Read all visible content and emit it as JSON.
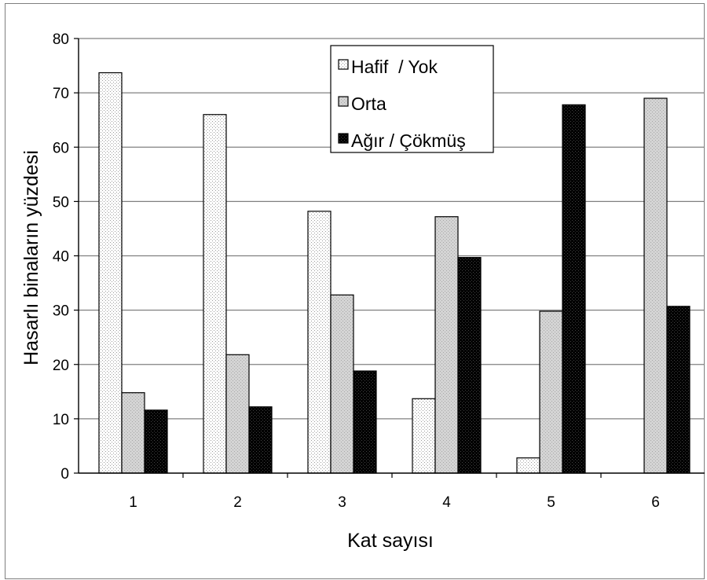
{
  "chart_data": {
    "type": "bar",
    "title": "",
    "xlabel": "Kat sayısı",
    "ylabel": "Hasarlı binaların yüzdesi",
    "categories": [
      "1",
      "2",
      "3",
      "4",
      "5",
      "6"
    ],
    "ylim": [
      0,
      80
    ],
    "yticks": [
      0,
      10,
      20,
      30,
      40,
      50,
      60,
      70,
      80
    ],
    "grid": true,
    "legend_position": "top-center",
    "series": [
      {
        "name": "Hafif  / Yok",
        "fill": "dotted-white",
        "color": "#f4f4f4",
        "values": [
          73.7,
          66.0,
          48.2,
          13.7,
          2.8,
          0
        ]
      },
      {
        "name": "Orta",
        "fill": "dotted-gray",
        "color": "#d0d0d0",
        "values": [
          14.8,
          21.8,
          32.8,
          47.2,
          29.8,
          69.0
        ]
      },
      {
        "name": "Ağır / Çökmüş",
        "fill": "dotted-black",
        "color": "#000000",
        "values": [
          11.6,
          12.2,
          18.8,
          39.7,
          67.8,
          30.7
        ]
      }
    ]
  }
}
